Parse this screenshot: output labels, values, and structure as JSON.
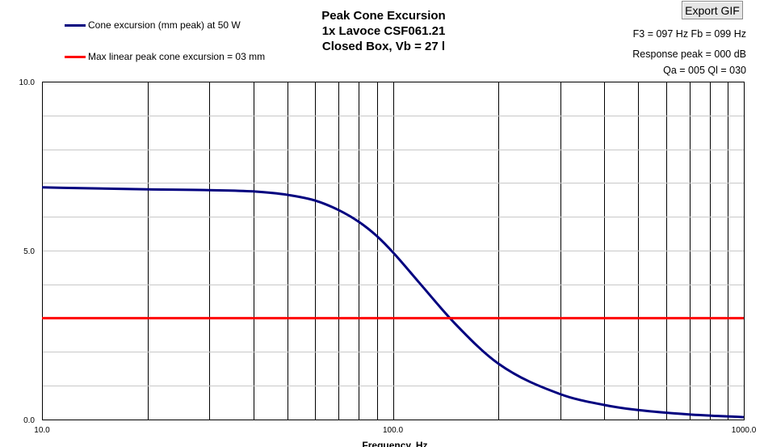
{
  "export_button": {
    "label": "Export GIF"
  },
  "info": {
    "f3_fb": "F3 = 097 Hz  Fb = 099 Hz",
    "response_peak": "Response peak = 000 dB",
    "qa_ql": "Qa = 005  Ql = 030"
  },
  "chart_data": {
    "type": "line",
    "title": [
      "Peak Cone Excursion",
      "1x Lavoce CSF061.21",
      "Closed Box, Vb = 27 l"
    ],
    "xlabel": "Frequency, Hz",
    "ylabel": "",
    "xscale": "log",
    "xlim": [
      10,
      1000
    ],
    "ylim": [
      0,
      10
    ],
    "x_tick_labels": [
      "10.0",
      "100.0",
      "1000.0"
    ],
    "y_tick_labels": [
      "0.0",
      "5.0",
      "10.0"
    ],
    "grid": true,
    "legend_position": "top-left",
    "series": [
      {
        "name": "Cone excursion (mm peak) at 50 W",
        "color": "#00007f",
        "x": [
          10,
          20,
          30,
          40,
          50,
          60,
          70,
          80,
          90,
          100,
          120,
          150,
          200,
          300,
          400,
          500,
          700,
          1000
        ],
        "y": [
          6.87,
          6.81,
          6.79,
          6.75,
          6.65,
          6.48,
          6.2,
          5.85,
          5.43,
          4.95,
          4.0,
          2.85,
          1.65,
          0.75,
          0.43,
          0.28,
          0.15,
          0.07
        ]
      },
      {
        "name": "Max linear peak cone excursion = 03 mm",
        "color": "#ff0000",
        "x": [
          10,
          1000
        ],
        "y": [
          3,
          3
        ]
      }
    ]
  }
}
